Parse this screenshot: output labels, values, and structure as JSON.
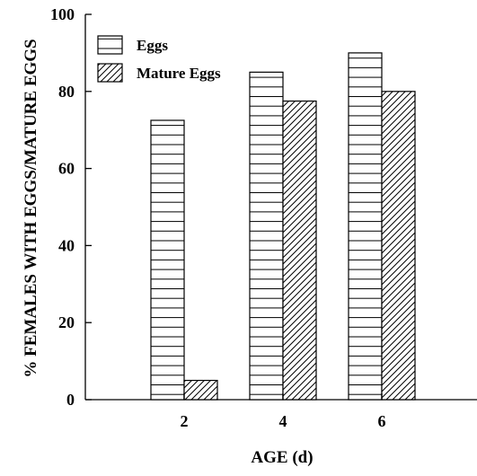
{
  "chart_data": {
    "type": "bar",
    "title": "",
    "xlabel": "AGE (d)",
    "ylabel": "% FEMALES WITH EGGS/MATURE EGGS",
    "categories": [
      "2",
      "4",
      "6"
    ],
    "series": [
      {
        "name": "Eggs",
        "values": [
          72.5,
          85,
          90
        ],
        "pattern": "horizontal-lines"
      },
      {
        "name": "Mature Eggs",
        "values": [
          5,
          77.5,
          80
        ],
        "pattern": "diagonal-hatch"
      }
    ],
    "ylim": [
      0,
      100
    ],
    "yticks": [
      0,
      20,
      40,
      60,
      80,
      100
    ],
    "grid": false,
    "legend_position": "top-left",
    "colors": {
      "stroke": "#000000",
      "fill": "#ffffff"
    }
  }
}
